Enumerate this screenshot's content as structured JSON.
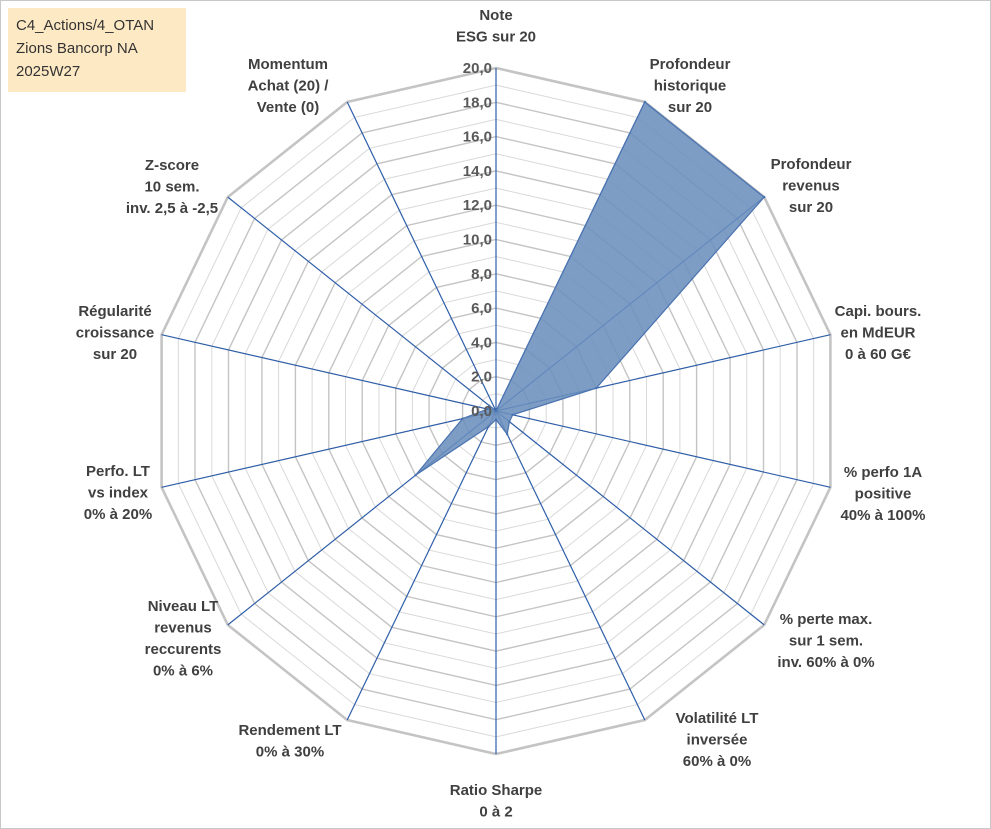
{
  "title_box": {
    "line1": "C4_Actions/4_OTAN",
    "line2": "Zions Bancorp NA",
    "line3": "2025W27"
  },
  "chart_data": {
    "type": "radar",
    "r_range": [
      0,
      20
    ],
    "tick_step": 2,
    "tick_labels": [
      "0,0",
      "2,0",
      "4,0",
      "6,0",
      "8,0",
      "10,0",
      "12,0",
      "14,0",
      "16,0",
      "18,0",
      "20,0"
    ],
    "axes": [
      [
        "Note",
        "ESG sur 20"
      ],
      [
        "Profondeur",
        "historique",
        "sur 20"
      ],
      [
        "Profondeur",
        "revenus",
        "sur 20"
      ],
      [
        "Capi. bours.",
        "en MdEUR",
        "0 à 60 G€"
      ],
      [
        "% perfo 1A",
        "positive",
        "40% à 100%"
      ],
      [
        "% perte max.",
        "sur 1 sem.",
        "inv. 60% à 0%"
      ],
      [
        "Volatilité LT",
        "inversée",
        "60% à 0%"
      ],
      [
        "Ratio Sharpe",
        "0 à 2"
      ],
      [
        "Rendement LT",
        "0% à 30%"
      ],
      [
        "Niveau LT",
        "revenus",
        "reccurents",
        "0% à 6%"
      ],
      [
        "Perfo. LT",
        "vs index",
        "0% à 20%"
      ],
      [
        "Régularité",
        "croissance",
        "sur 20"
      ],
      [
        "Z-score",
        "10 sem.",
        "inv. 2,5 à -2,5"
      ],
      [
        "Momentum",
        "Achat (20) /",
        "Vente (0)"
      ]
    ],
    "series": [
      {
        "values": [
          0,
          20,
          20,
          6,
          1,
          1,
          1.5,
          0.5,
          1,
          6,
          2,
          0.5,
          0.5,
          0
        ]
      }
    ],
    "colors": {
      "fill": "#6b8fbd",
      "stroke": "#4a73b0",
      "spoke": "#2f5ea8",
      "grid_major": "#c4c4c4",
      "grid_minor": "#d9d9d9"
    },
    "grid": true,
    "legend": "none"
  }
}
